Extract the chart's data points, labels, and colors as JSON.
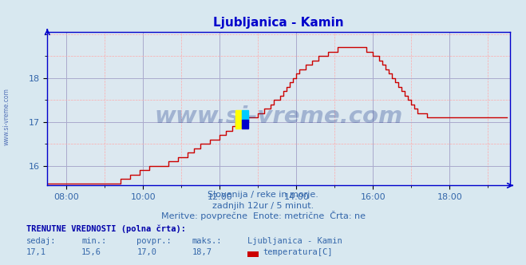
{
  "title": "Ljubljanica - Kamin",
  "title_color": "#0000cc",
  "bg_color": "#d8e8f0",
  "plot_bg_color": "#dce8f0",
  "line_color": "#cc0000",
  "line_width": 1.0,
  "xlim_start": 7.5,
  "xlim_end": 19.583,
  "ylim_min": 15.55,
  "ylim_max": 19.05,
  "yticks": [
    16,
    17,
    18
  ],
  "xtick_labels": [
    "08:00",
    "10:00",
    "12:00",
    "14:00",
    "16:00",
    "18:00"
  ],
  "xtick_positions": [
    8,
    10,
    12,
    14,
    16,
    18
  ],
  "subtitle1": "Slovenija / reke in morje.",
  "subtitle2": "zadnjih 12ur / 5 minut.",
  "subtitle3": "Meritve: povprečne  Enote: metrične  Črta: ne",
  "subtitle_color": "#3366aa",
  "watermark": "www.si-vreme.com",
  "watermark_color": "#1a3a8a",
  "footer_label": "TRENUTNE VREDNOSTI (polna črta):",
  "footer_color": "#0000aa",
  "col_headers": [
    "sedaj:",
    "min.:",
    "povpr.:",
    "maks.:",
    "Ljubljanica - Kamin"
  ],
  "col_values": [
    "17,1",
    "15,6",
    "17,0",
    "18,7"
  ],
  "legend_label": "temperatura[C]",
  "legend_color": "#cc0000",
  "marker_x": 12.58,
  "marker_y": 17.05,
  "time_start_hour": 7.5,
  "time_step_minutes": 5,
  "temperature_data": [
    15.6,
    15.6,
    15.6,
    15.6,
    15.6,
    15.6,
    15.6,
    15.6,
    15.6,
    15.6,
    15.6,
    15.6,
    15.6,
    15.6,
    15.6,
    15.6,
    15.6,
    15.6,
    15.6,
    15.6,
    15.6,
    15.6,
    15.6,
    15.7,
    15.7,
    15.7,
    15.8,
    15.8,
    15.8,
    15.9,
    15.9,
    15.9,
    16.0,
    16.0,
    16.0,
    16.0,
    16.0,
    16.0,
    16.1,
    16.1,
    16.1,
    16.2,
    16.2,
    16.2,
    16.3,
    16.3,
    16.4,
    16.4,
    16.5,
    16.5,
    16.5,
    16.6,
    16.6,
    16.6,
    16.7,
    16.7,
    16.8,
    16.8,
    16.9,
    17.0,
    17.0,
    17.0,
    17.0,
    17.1,
    17.1,
    17.1,
    17.2,
    17.2,
    17.3,
    17.3,
    17.4,
    17.5,
    17.5,
    17.6,
    17.7,
    17.8,
    17.9,
    18.0,
    18.1,
    18.2,
    18.2,
    18.3,
    18.3,
    18.4,
    18.4,
    18.5,
    18.5,
    18.5,
    18.6,
    18.6,
    18.6,
    18.7,
    18.7,
    18.7,
    18.7,
    18.7,
    18.7,
    18.7,
    18.7,
    18.7,
    18.6,
    18.6,
    18.5,
    18.5,
    18.4,
    18.3,
    18.2,
    18.1,
    18.0,
    17.9,
    17.8,
    17.7,
    17.6,
    17.5,
    17.4,
    17.3,
    17.2,
    17.2,
    17.2,
    17.1,
    17.1,
    17.1,
    17.1,
    17.1,
    17.1,
    17.1,
    17.1,
    17.1,
    17.1,
    17.1,
    17.1,
    17.1,
    17.1,
    17.1,
    17.1,
    17.1,
    17.1,
    17.1,
    17.1,
    17.1,
    17.1,
    17.1,
    17.1,
    17.1,
    17.1
  ]
}
